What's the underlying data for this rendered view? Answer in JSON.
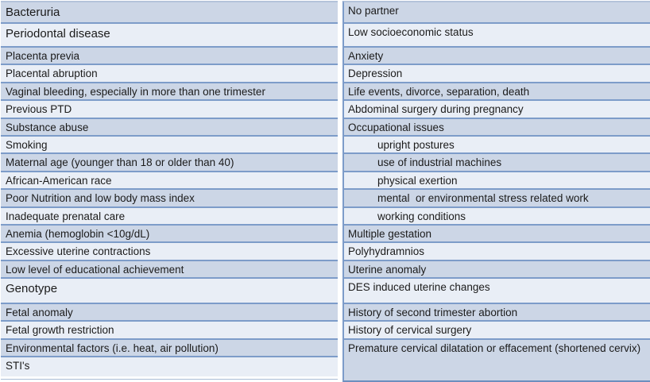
{
  "colors": {
    "band_dark": "#ccd6e6",
    "band_light": "#e9eef6",
    "border": "#7d9cc9",
    "text": "#1b1b1b"
  },
  "table": {
    "description": "two-column table of risk factors",
    "rows": [
      {
        "left": "Bacteruria",
        "right": "No partner"
      },
      {
        "left": "Periodontal disease",
        "right": "Low socioeconomic status"
      },
      {
        "left": "Placenta previa",
        "right": "Anxiety"
      },
      {
        "left": "Placental abruption",
        "right": "Depression"
      },
      {
        "left": "Vaginal bleeding, especially in more than one trimester",
        "right": "Life events, divorce, separation, death"
      },
      {
        "left": "Previous PTD",
        "right": "Abdominal surgery during pregnancy"
      },
      {
        "left": "Substance abuse",
        "right": "Occupational issues"
      },
      {
        "left": "Smoking",
        "right": "upright postures"
      },
      {
        "left": "Maternal age (younger than 18 or older than 40)",
        "right": "use of industrial machines"
      },
      {
        "left": "African-American race",
        "right": "physical exertion"
      },
      {
        "left": "Poor Nutrition and low body mass index",
        "right": "mental  or environmental stress related work"
      },
      {
        "left": "Inadequate prenatal care",
        "right": "working conditions"
      },
      {
        "left": "Anemia (hemoglobin <10g/dL)",
        "right": "Multiple gestation"
      },
      {
        "left": "Excessive uterine contractions",
        "right": "Polyhydramnios"
      },
      {
        "left": "Low level of educational achievement",
        "right": "Uterine anomaly"
      },
      {
        "left": "Genotype",
        "right": "DES induced uterine changes"
      },
      {
        "left": "Fetal anomaly",
        "right": "History of second trimester abortion"
      },
      {
        "left": "Fetal growth restriction",
        "right": "History of cervical surgery"
      },
      {
        "left": "Environmental factors (i.e. heat, air pollution)",
        "right": "Premature cervical dilatation or effacement (shortened cervix)"
      },
      {
        "left": "STI's",
        "right": ""
      }
    ]
  }
}
